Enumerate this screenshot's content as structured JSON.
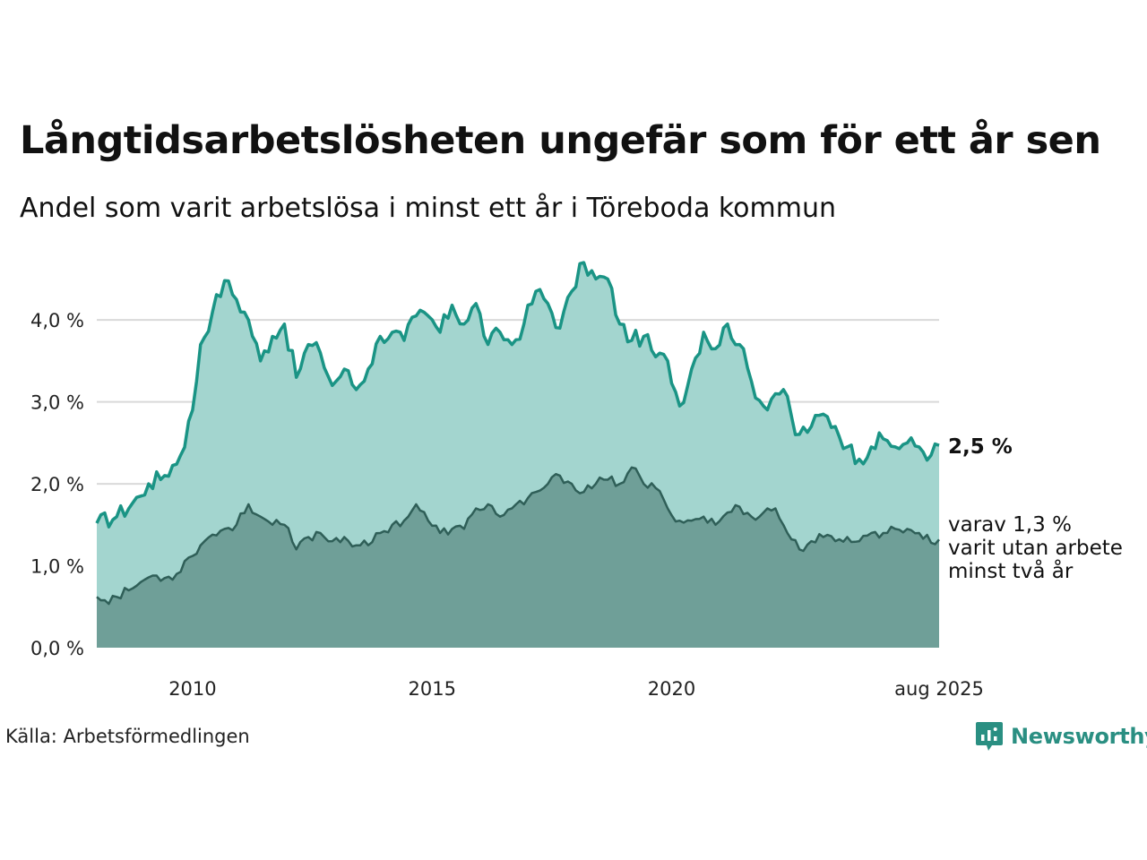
{
  "title": "Långtidsarbetslösheten ungefär som för ett år sen",
  "subtitle": "Andel som varit arbetslösa i minst ett år i Töreboda kommun",
  "source": "Källa: Arbetsförmedlingen",
  "logo": {
    "name": "Newsworthy",
    "icon": "newsworthy-logo-icon"
  },
  "colors": {
    "upper_line": "#1a9485",
    "upper_fill": "#a3d5cf",
    "lower_line": "#2f5f58",
    "lower_fill": "#6f9f98",
    "grid": "#d9d9d9"
  },
  "chart_data": {
    "type": "area",
    "x_start": "2008-01",
    "x_end": "2025-08",
    "x_frequency": "monthly",
    "ylim": [
      0,
      4.8
    ],
    "y_ticks": [
      {
        "value": 0,
        "label": "0,0 %"
      },
      {
        "value": 1,
        "label": "1,0 %"
      },
      {
        "value": 2,
        "label": "2,0 %"
      },
      {
        "value": 3,
        "label": "3,0 %"
      },
      {
        "value": 4,
        "label": "4,0 %"
      }
    ],
    "x_ticks": [
      {
        "date": "2010-01",
        "label": "2010"
      },
      {
        "date": "2015-01",
        "label": "2015"
      },
      {
        "date": "2020-01",
        "label": "2020"
      },
      {
        "date": "2025-08",
        "label": "aug 2025"
      }
    ],
    "grid": true,
    "end_labels": {
      "total": "2,5 %",
      "sub_lines": [
        "varav 1,3 %",
        "varit utan arbete",
        "minst två år"
      ]
    },
    "series": [
      {
        "key": "total",
        "anchors": [
          [
            "2008-01",
            1.52
          ],
          [
            "2008-06",
            1.6
          ],
          [
            "2008-12",
            1.85
          ],
          [
            "2009-02",
            2.0
          ],
          [
            "2009-06",
            2.1
          ],
          [
            "2009-10",
            2.35
          ],
          [
            "2010-01",
            2.9
          ],
          [
            "2010-03",
            3.7
          ],
          [
            "2010-06",
            4.1
          ],
          [
            "2010-09",
            4.48
          ],
          [
            "2010-12",
            4.25
          ],
          [
            "2011-03",
            4.0
          ],
          [
            "2011-06",
            3.5
          ],
          [
            "2011-09",
            3.8
          ],
          [
            "2011-12",
            3.95
          ],
          [
            "2012-03",
            3.3
          ],
          [
            "2012-06",
            3.7
          ],
          [
            "2012-09",
            3.6
          ],
          [
            "2012-12",
            3.2
          ],
          [
            "2013-03",
            3.4
          ],
          [
            "2013-06",
            3.15
          ],
          [
            "2013-09",
            3.4
          ],
          [
            "2013-12",
            3.8
          ],
          [
            "2014-03",
            3.85
          ],
          [
            "2014-06",
            3.75
          ],
          [
            "2014-09",
            4.05
          ],
          [
            "2014-12",
            4.05
          ],
          [
            "2015-03",
            3.85
          ],
          [
            "2015-06",
            4.18
          ],
          [
            "2015-09",
            3.95
          ],
          [
            "2015-12",
            4.2
          ],
          [
            "2016-03",
            3.7
          ],
          [
            "2016-06",
            3.85
          ],
          [
            "2016-09",
            3.7
          ],
          [
            "2016-12",
            3.95
          ],
          [
            "2017-03",
            4.35
          ],
          [
            "2017-06",
            4.2
          ],
          [
            "2017-09",
            3.9
          ],
          [
            "2017-12",
            4.35
          ],
          [
            "2018-03",
            4.7
          ],
          [
            "2018-06",
            4.5
          ],
          [
            "2018-09",
            4.5
          ],
          [
            "2018-12",
            3.95
          ],
          [
            "2019-03",
            3.75
          ],
          [
            "2019-06",
            3.8
          ],
          [
            "2019-09",
            3.55
          ],
          [
            "2019-12",
            3.5
          ],
          [
            "2020-03",
            2.95
          ],
          [
            "2020-06",
            3.4
          ],
          [
            "2020-09",
            3.85
          ],
          [
            "2020-12",
            3.65
          ],
          [
            "2021-03",
            3.95
          ],
          [
            "2021-06",
            3.7
          ],
          [
            "2021-09",
            3.25
          ],
          [
            "2021-12",
            2.95
          ],
          [
            "2022-03",
            3.1
          ],
          [
            "2022-05",
            3.15
          ],
          [
            "2022-08",
            2.6
          ],
          [
            "2022-12",
            2.7
          ],
          [
            "2023-03",
            2.85
          ],
          [
            "2023-06",
            2.7
          ],
          [
            "2023-09",
            2.45
          ],
          [
            "2023-12",
            2.3
          ],
          [
            "2024-03",
            2.45
          ],
          [
            "2024-06",
            2.55
          ],
          [
            "2024-09",
            2.45
          ],
          [
            "2024-12",
            2.5
          ],
          [
            "2025-03",
            2.45
          ],
          [
            "2025-06",
            2.35
          ],
          [
            "2025-08",
            2.47
          ]
        ]
      },
      {
        "key": "two_years",
        "anchors": [
          [
            "2008-01",
            0.62
          ],
          [
            "2008-03",
            0.58
          ],
          [
            "2008-06",
            0.62
          ],
          [
            "2008-09",
            0.7
          ],
          [
            "2008-12",
            0.8
          ],
          [
            "2009-03",
            0.88
          ],
          [
            "2009-06",
            0.85
          ],
          [
            "2009-09",
            0.9
          ],
          [
            "2009-12",
            1.1
          ],
          [
            "2010-03",
            1.25
          ],
          [
            "2010-06",
            1.38
          ],
          [
            "2010-09",
            1.45
          ],
          [
            "2010-12",
            1.5
          ],
          [
            "2011-03",
            1.75
          ],
          [
            "2011-06",
            1.6
          ],
          [
            "2011-09",
            1.5
          ],
          [
            "2011-12",
            1.5
          ],
          [
            "2012-03",
            1.2
          ],
          [
            "2012-06",
            1.35
          ],
          [
            "2012-09",
            1.4
          ],
          [
            "2012-12",
            1.3
          ],
          [
            "2013-03",
            1.35
          ],
          [
            "2013-06",
            1.25
          ],
          [
            "2013-09",
            1.25
          ],
          [
            "2013-12",
            1.4
          ],
          [
            "2014-03",
            1.5
          ],
          [
            "2014-06",
            1.55
          ],
          [
            "2014-09",
            1.75
          ],
          [
            "2014-12",
            1.55
          ],
          [
            "2015-03",
            1.4
          ],
          [
            "2015-06",
            1.45
          ],
          [
            "2015-09",
            1.45
          ],
          [
            "2015-12",
            1.7
          ],
          [
            "2016-03",
            1.75
          ],
          [
            "2016-06",
            1.6
          ],
          [
            "2016-09",
            1.7
          ],
          [
            "2016-12",
            1.75
          ],
          [
            "2017-03",
            1.9
          ],
          [
            "2017-06",
            2.0
          ],
          [
            "2017-09",
            2.1
          ],
          [
            "2017-12",
            2.0
          ],
          [
            "2018-03",
            1.9
          ],
          [
            "2018-06",
            2.0
          ],
          [
            "2018-09",
            2.05
          ],
          [
            "2018-12",
            2.0
          ],
          [
            "2019-03",
            2.2
          ],
          [
            "2019-06",
            2.0
          ],
          [
            "2019-09",
            1.95
          ],
          [
            "2019-12",
            1.7
          ],
          [
            "2020-03",
            1.55
          ],
          [
            "2020-06",
            1.55
          ],
          [
            "2020-09",
            1.6
          ],
          [
            "2020-12",
            1.5
          ],
          [
            "2021-03",
            1.65
          ],
          [
            "2021-06",
            1.72
          ],
          [
            "2021-09",
            1.6
          ],
          [
            "2021-12",
            1.65
          ],
          [
            "2022-03",
            1.7
          ],
          [
            "2022-06",
            1.4
          ],
          [
            "2022-09",
            1.2
          ],
          [
            "2022-12",
            1.3
          ],
          [
            "2023-03",
            1.35
          ],
          [
            "2023-06",
            1.3
          ],
          [
            "2023-09",
            1.35
          ],
          [
            "2023-12",
            1.3
          ],
          [
            "2024-03",
            1.4
          ],
          [
            "2024-06",
            1.4
          ],
          [
            "2024-09",
            1.45
          ],
          [
            "2024-12",
            1.45
          ],
          [
            "2025-03",
            1.4
          ],
          [
            "2025-06",
            1.28
          ],
          [
            "2025-08",
            1.32
          ]
        ]
      }
    ]
  }
}
